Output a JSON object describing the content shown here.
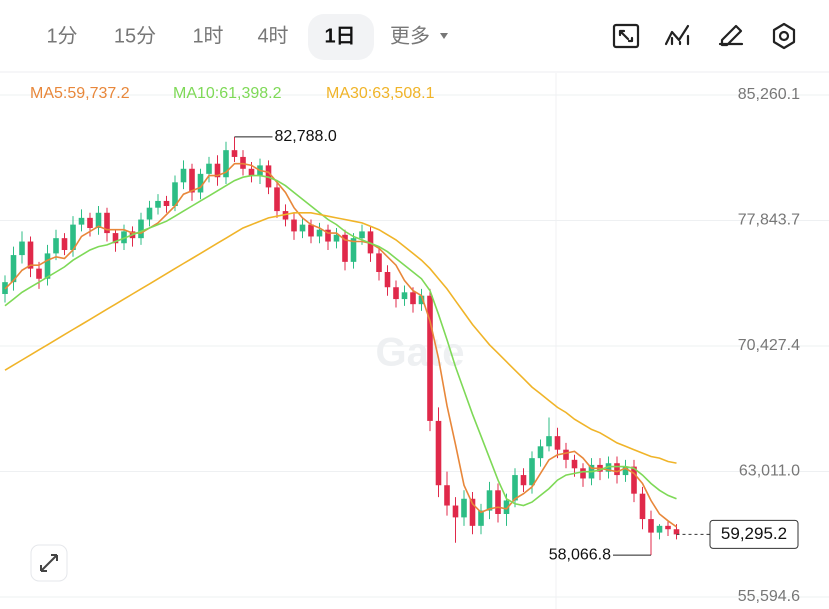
{
  "toolbar": {
    "tabs": [
      "1分",
      "15分",
      "1时",
      "4时",
      "1日",
      "更多"
    ],
    "active": 4
  },
  "chart_data": {
    "type": "candlestick",
    "watermark": "Gate",
    "up_color": "#2dbd85",
    "down_color": "#e0294a",
    "open": [
      73500,
      74200,
      75800,
      76600,
      75000,
      74400,
      75900,
      76800,
      76100,
      77600,
      78000,
      77400,
      78300,
      77100,
      76500,
      77200,
      76800,
      77900,
      78600,
      79000,
      78700,
      80100,
      80900,
      79500,
      80600,
      81200,
      80400,
      82000,
      81600,
      80900,
      80500,
      81100,
      79800,
      78400,
      77900,
      77200,
      77600,
      76900,
      77300,
      76600,
      77000,
      75400,
      76800,
      77200,
      75900,
      74800,
      73900,
      73200,
      73600,
      72900,
      73400,
      66000,
      62200,
      61000,
      60300,
      61400,
      59800,
      60700,
      61900,
      60500,
      61300,
      62800,
      62200,
      63800,
      64500,
      65100,
      64300,
      63700,
      63200,
      62600,
      63400,
      63000,
      63500,
      62800,
      63300,
      61700,
      60200,
      59400,
      59800,
      59600
    ],
    "high": [
      74600,
      76300,
      77200,
      76900,
      75400,
      76400,
      77300,
      77100,
      78100,
      78500,
      78300,
      78700,
      78600,
      77300,
      77600,
      77500,
      78300,
      79000,
      79400,
      79300,
      80500,
      81400,
      81200,
      80900,
      81600,
      81700,
      82500,
      82788,
      82000,
      81300,
      81500,
      81400,
      80100,
      78800,
      78300,
      78000,
      77900,
      77700,
      77600,
      77400,
      77300,
      77100,
      77600,
      77500,
      76200,
      75200,
      74300,
      74000,
      73900,
      73800,
      73800,
      66800,
      63000,
      61500,
      61900,
      61800,
      61100,
      62400,
      62300,
      61700,
      63200,
      63200,
      64200,
      64900,
      66200,
      65600,
      64700,
      64000,
      63500,
      63800,
      63800,
      63900,
      63900,
      63700,
      63700,
      62100,
      60700,
      59900,
      60100,
      59900
    ],
    "low": [
      73000,
      73700,
      75300,
      74500,
      73800,
      74000,
      75500,
      75800,
      75700,
      77200,
      76900,
      77000,
      76600,
      76000,
      76100,
      76300,
      76400,
      77500,
      78200,
      78300,
      78400,
      79700,
      79000,
      79100,
      80100,
      79900,
      80000,
      81300,
      80500,
      80100,
      80000,
      79400,
      78000,
      77500,
      76700,
      76800,
      76500,
      76500,
      76100,
      76200,
      74900,
      75000,
      76400,
      75400,
      74300,
      73400,
      72700,
      72800,
      72400,
      72500,
      65400,
      61500,
      60400,
      58800,
      59800,
      59300,
      59300,
      60200,
      60000,
      59800,
      60900,
      61800,
      61700,
      63300,
      64200,
      63800,
      63200,
      62700,
      62100,
      62200,
      62500,
      62600,
      62300,
      62400,
      61200,
      59600,
      58066.8,
      59000,
      59200,
      59000
    ],
    "close": [
      74200,
      75800,
      76600,
      75000,
      74400,
      75900,
      76800,
      76100,
      77600,
      78000,
      77400,
      78300,
      77100,
      76500,
      77200,
      76800,
      77900,
      78600,
      79000,
      78700,
      80100,
      80900,
      79500,
      80600,
      81200,
      80400,
      82000,
      81600,
      80900,
      80500,
      81100,
      79800,
      78400,
      77900,
      77200,
      77600,
      76900,
      77300,
      76600,
      77000,
      75400,
      76800,
      77200,
      75900,
      74800,
      73900,
      73200,
      73600,
      72900,
      73400,
      66000,
      62200,
      61000,
      60300,
      61400,
      59800,
      60700,
      61900,
      60500,
      61300,
      62800,
      62200,
      63800,
      64500,
      65100,
      64300,
      63700,
      63200,
      62600,
      63400,
      63000,
      63500,
      62800,
      63300,
      61700,
      60200,
      59400,
      59800,
      59600,
      59295.2
    ],
    "series": [
      {
        "name": "MA5",
        "label": "MA5:59,737.2",
        "color": "#e8873a",
        "values": [
          73800,
          74300,
          74900,
          75200,
          75200,
          75500,
          75700,
          75600,
          76100,
          76900,
          77200,
          77500,
          77300,
          77300,
          77300,
          77100,
          77100,
          77400,
          77700,
          78200,
          78700,
          79400,
          79600,
          79800,
          80500,
          80500,
          80700,
          81200,
          81200,
          81100,
          80800,
          80700,
          80100,
          79500,
          78600,
          78000,
          77600,
          77400,
          77100,
          77100,
          76700,
          76600,
          76600,
          76500,
          76200,
          75700,
          75200,
          74300,
          73700,
          73400,
          71900,
          69700,
          66900,
          64600,
          62200,
          61100,
          60600,
          60800,
          60900,
          60800,
          61400,
          61700,
          62100,
          62900,
          63700,
          64000,
          64100,
          64200,
          63800,
          63200,
          63200,
          63100,
          63000,
          63200,
          62900,
          62300,
          61300,
          60500,
          60100,
          59737.2
        ]
      },
      {
        "name": "MA10",
        "label": "MA10:61,398.2",
        "color": "#7ed957",
        "values": [
          72800,
          73200,
          73600,
          73900,
          74200,
          74500,
          74800,
          75100,
          75500,
          75800,
          76100,
          76300,
          76400,
          76600,
          76800,
          77000,
          77200,
          77400,
          77600,
          77800,
          78100,
          78400,
          78700,
          79000,
          79300,
          79600,
          79900,
          80200,
          80400,
          80500,
          80500,
          80400,
          80200,
          79900,
          79500,
          79100,
          78700,
          78300,
          77900,
          77600,
          77200,
          76900,
          76700,
          76500,
          76300,
          76000,
          75600,
          75200,
          74800,
          74400,
          73700,
          72300,
          70800,
          69200,
          67800,
          66400,
          65100,
          63800,
          62500,
          61400,
          61100,
          61000,
          61200,
          61600,
          62000,
          62500,
          62800,
          62900,
          63000,
          63000,
          63100,
          63300,
          63300,
          63300,
          63200,
          62800,
          62300,
          61900,
          61600,
          61398.2
        ]
      },
      {
        "name": "MA30",
        "label": "MA30:63,508.1",
        "color": "#f0b429",
        "values": [
          69000,
          69300,
          69600,
          69900,
          70200,
          70500,
          70800,
          71100,
          71400,
          71700,
          72000,
          72300,
          72600,
          72900,
          73200,
          73500,
          73800,
          74100,
          74400,
          74700,
          75000,
          75300,
          75600,
          75900,
          76200,
          76500,
          76800,
          77100,
          77400,
          77600,
          77800,
          78000,
          78100,
          78200,
          78300,
          78300,
          78300,
          78200,
          78100,
          78000,
          77900,
          77800,
          77700,
          77500,
          77300,
          77000,
          76700,
          76300,
          75900,
          75500,
          75000,
          74400,
          73800,
          73100,
          72400,
          71700,
          71100,
          70500,
          70000,
          69500,
          69000,
          68500,
          68000,
          67600,
          67200,
          66800,
          66500,
          66100,
          65800,
          65500,
          65300,
          65000,
          64700,
          64500,
          64300,
          64100,
          63900,
          63800,
          63600,
          63508.1
        ]
      }
    ],
    "ylim": [
      55594.6,
      85260.1
    ],
    "yticks": [
      {
        "value": 55594.6,
        "label": "55,594.6"
      },
      {
        "value": 63011.0,
        "label": "63,011.0"
      },
      {
        "value": 70427.4,
        "label": "70,427.4"
      },
      {
        "value": 77843.7,
        "label": "77,843.7"
      },
      {
        "value": 85260.1,
        "label": "85,260.1"
      }
    ],
    "grid": true,
    "annotations": [
      {
        "value": 82788.0,
        "label": "82,788.0"
      },
      {
        "value": 58066.8,
        "label": "58,066.8"
      }
    ],
    "last_price": {
      "value": 59295.2,
      "label": "59,295.2"
    }
  }
}
